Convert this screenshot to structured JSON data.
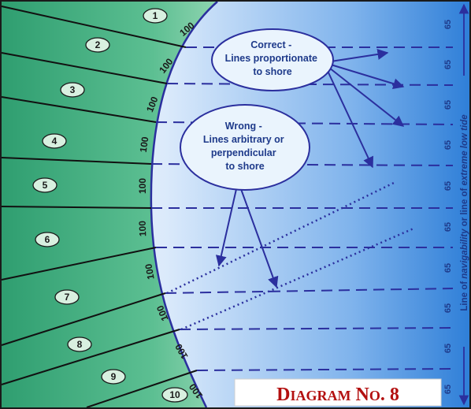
{
  "lots": [
    {
      "num": "1",
      "land": "100",
      "water": "65"
    },
    {
      "num": "2",
      "land": "100",
      "water": "65"
    },
    {
      "num": "3",
      "land": "100",
      "water": "65"
    },
    {
      "num": "4",
      "land": "100",
      "water": "65"
    },
    {
      "num": "5",
      "land": "100",
      "water": "65"
    },
    {
      "num": "6",
      "land": "100",
      "water": "65"
    },
    {
      "num": "7",
      "land": "100",
      "water": "65"
    },
    {
      "num": "8",
      "land": "100",
      "water": "65"
    },
    {
      "num": "9",
      "land": "100",
      "water": "65"
    },
    {
      "num": "10",
      "land": "100",
      "water": "65"
    }
  ],
  "callouts": {
    "correct": [
      "Correct -",
      "Lines proportionate",
      "to shore"
    ],
    "wrong": [
      "Wrong -",
      "Lines arbitrary or",
      "perpendicular",
      "to shore"
    ]
  },
  "side_label": {
    "part1": "Line of ",
    "part2": "navigability",
    "part3": " or line of ",
    "part4": "extreme low tide"
  },
  "title": {
    "d": "D",
    "iagram": "IAGRAM",
    "n": " N",
    "o": "O",
    "num": ". 8"
  },
  "colors": {
    "land": "#3aa678",
    "water": "#2a78d6",
    "line_blue": "#2b2f9e",
    "title_red": "#b31010"
  }
}
